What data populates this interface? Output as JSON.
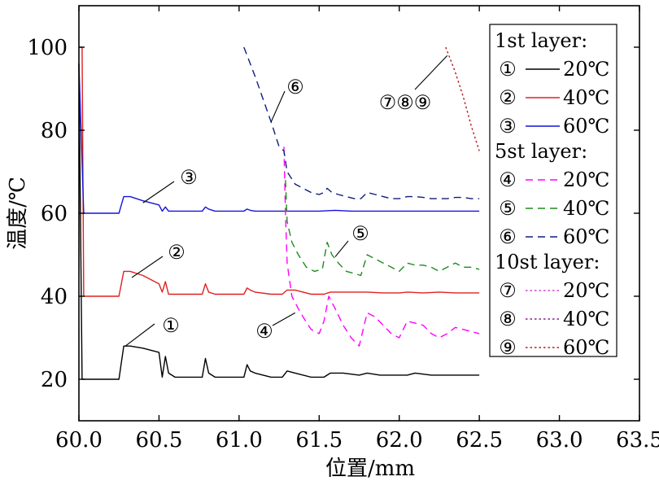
{
  "chart_data": {
    "type": "line",
    "xlabel": "位置/mm",
    "ylabel": "温度/℃",
    "xlim": [
      60.0,
      63.5
    ],
    "ylim": [
      10,
      110
    ],
    "xticks": [
      60.0,
      60.5,
      61.0,
      61.5,
      62.0,
      62.5,
      63.0,
      63.5
    ],
    "xtick_labels": [
      "60.0",
      "60.5",
      "61.0",
      "61.5",
      "62.0",
      "62.5",
      "63.0",
      "63.5"
    ],
    "yticks": [
      20,
      40,
      60,
      80,
      100
    ],
    "ytick_labels": [
      "20",
      "40",
      "60",
      "80",
      "100"
    ],
    "grid": false,
    "legend": {
      "placement": "top-right",
      "groups": [
        {
          "title": "1st layer:",
          "entries": [
            {
              "symbol": "①",
              "label": "20℃",
              "series": 0
            },
            {
              "symbol": "②",
              "label": "40℃",
              "series": 1
            },
            {
              "symbol": "③",
              "label": "60℃",
              "series": 2
            }
          ]
        },
        {
          "title": "5st layer:",
          "entries": [
            {
              "symbol": "④",
              "label": "20℃",
              "series": 3
            },
            {
              "symbol": "⑤",
              "label": "40℃",
              "series": 4
            },
            {
              "symbol": "⑥",
              "label": "60℃",
              "series": 5
            }
          ]
        },
        {
          "title": "10st layer:",
          "entries": [
            {
              "symbol": "⑦",
              "label": "20℃",
              "series": 6
            },
            {
              "symbol": "⑧",
              "label": "40℃",
              "series": 7
            },
            {
              "symbol": "⑨",
              "label": "60℃",
              "series": 8
            }
          ]
        }
      ]
    },
    "annotations": [
      {
        "text": "①",
        "x": 60.29,
        "y": 28.0
      },
      {
        "text": "②",
        "x": 60.33,
        "y": 44.5
      },
      {
        "text": "③",
        "x": 60.4,
        "y": 62.5
      },
      {
        "text": "④",
        "x": 61.35,
        "y": 36.0
      },
      {
        "text": "⑤",
        "x": 61.6,
        "y": 49.5
      },
      {
        "text": "⑥",
        "x": 61.2,
        "y": 82.0
      },
      {
        "text": "⑦⑧⑨",
        "x": 62.3,
        "y": 98.0
      }
    ],
    "series": [
      {
        "layer": "1st layer",
        "temp": "20℃",
        "color": "#000000",
        "dash": "solid",
        "x": [
          60.0,
          60.02,
          60.03,
          60.04,
          60.05,
          60.07,
          60.1,
          60.15,
          60.2,
          60.25,
          60.28,
          60.32,
          60.4,
          60.5,
          60.52,
          60.54,
          60.56,
          60.6,
          60.7,
          60.77,
          60.79,
          60.81,
          60.85,
          60.95,
          61.03,
          61.05,
          61.07,
          61.1,
          61.2,
          61.27,
          61.3,
          61.35,
          61.45,
          61.53,
          61.57,
          61.65,
          61.75,
          61.8,
          61.88,
          61.95,
          62.05,
          62.1,
          62.2,
          62.3,
          62.4,
          62.5
        ],
        "y": [
          96,
          20,
          20,
          20,
          20,
          20,
          20,
          20,
          20,
          20,
          28,
          28,
          27.5,
          26.5,
          20.5,
          25.5,
          21.5,
          20.5,
          20.5,
          20.5,
          25,
          21.5,
          20.5,
          20.5,
          20.5,
          23.5,
          22,
          21.5,
          20.5,
          20.5,
          22,
          21.5,
          20.5,
          20.5,
          21.5,
          21.5,
          21,
          21.5,
          21,
          21,
          21,
          21.5,
          21,
          21,
          21,
          21
        ]
      },
      {
        "layer": "1st layer",
        "temp": "40℃",
        "color": "#e02020",
        "dash": "solid",
        "x": [
          60.0,
          60.02,
          60.03,
          60.05,
          60.1,
          60.15,
          60.2,
          60.25,
          60.28,
          60.32,
          60.4,
          60.5,
          60.52,
          60.54,
          60.56,
          60.6,
          60.7,
          60.77,
          60.79,
          60.81,
          60.85,
          60.95,
          61.03,
          61.05,
          61.07,
          61.1,
          61.2,
          61.27,
          61.3,
          61.35,
          61.45,
          61.53,
          61.57,
          61.65,
          61.75,
          61.8,
          61.9,
          62.0,
          62.05,
          62.15,
          62.25,
          62.35,
          62.5
        ],
        "y": [
          100,
          100,
          40,
          40,
          40,
          40,
          40,
          40,
          46,
          46,
          45,
          43,
          41,
          43.5,
          40.5,
          40.5,
          40.5,
          40.5,
          43,
          41,
          40.5,
          40.5,
          40.5,
          42,
          41.5,
          41,
          40.5,
          40.5,
          41.5,
          41.5,
          40.5,
          40.5,
          41,
          41,
          41,
          41,
          40.8,
          40.8,
          41,
          40.8,
          41,
          40.8,
          40.8
        ]
      },
      {
        "layer": "1st layer",
        "temp": "60℃",
        "color": "#1414d8",
        "dash": "solid",
        "x": [
          60.0,
          60.03,
          60.05,
          60.1,
          60.15,
          60.2,
          60.25,
          60.28,
          60.32,
          60.4,
          60.5,
          60.52,
          60.54,
          60.56,
          60.6,
          60.7,
          60.77,
          60.79,
          60.81,
          60.85,
          60.95,
          61.03,
          61.05,
          61.07,
          61.1,
          61.2,
          61.3,
          61.4,
          61.5,
          61.6,
          61.7,
          61.8,
          61.9,
          62.0,
          62.1,
          62.2,
          62.3,
          62.4,
          62.5
        ],
        "y": [
          96,
          60,
          60,
          60,
          60,
          60,
          60,
          64,
          64,
          63,
          62,
          60.5,
          61.5,
          60.5,
          60.5,
          60.5,
          60.5,
          61.5,
          61,
          60.5,
          60.5,
          60.5,
          61,
          60.7,
          60.5,
          60.5,
          60.5,
          60.5,
          60.5,
          60.7,
          60.5,
          60.5,
          60.5,
          60.5,
          60.5,
          60.5,
          60.5,
          60.5,
          60.5
        ]
      },
      {
        "layer": "5st layer",
        "temp": "20℃",
        "color": "#ff00ff",
        "dash": "longdash",
        "x": [
          61.28,
          61.29,
          61.3,
          61.33,
          61.37,
          61.4,
          61.45,
          61.5,
          61.53,
          61.56,
          61.6,
          61.65,
          61.7,
          61.75,
          61.8,
          61.85,
          61.9,
          61.95,
          62.0,
          62.05,
          62.1,
          62.15,
          62.2,
          62.25,
          62.3,
          62.35,
          62.4,
          62.45,
          62.5
        ],
        "y": [
          76,
          60,
          48,
          40,
          37,
          35,
          32,
          31,
          34,
          40,
          37,
          33,
          30,
          28,
          36,
          35,
          33,
          31,
          30,
          34,
          33.5,
          33,
          31,
          30,
          31,
          32.5,
          32,
          31.5,
          31
        ]
      },
      {
        "layer": "5st layer",
        "temp": "40℃",
        "color": "#1e8c1e",
        "dash": "longdash",
        "x": [
          61.29,
          61.3,
          61.33,
          61.37,
          61.42,
          61.47,
          61.52,
          61.55,
          61.58,
          61.62,
          61.67,
          61.72,
          61.76,
          61.8,
          61.85,
          61.9,
          61.95,
          62.0,
          62.05,
          62.1,
          62.15,
          62.2,
          62.25,
          62.3,
          62.35,
          62.4,
          62.45,
          62.5
        ],
        "y": [
          68,
          58,
          53,
          50,
          47,
          46,
          46.5,
          53,
          50,
          48,
          46,
          45.5,
          45,
          50,
          49,
          48,
          47,
          46,
          48,
          47.5,
          47.5,
          47,
          46,
          47,
          48,
          47,
          47,
          46.5
        ]
      },
      {
        "layer": "5st layer",
        "temp": "60℃",
        "color": "#0d1f7a",
        "dash": "longdash",
        "x": [
          61.03,
          61.1,
          61.2,
          61.25,
          61.28,
          61.3,
          61.35,
          61.4,
          61.45,
          61.5,
          61.53,
          61.55,
          61.58,
          61.62,
          61.67,
          61.72,
          61.76,
          61.8,
          61.85,
          61.9,
          61.95,
          62.0,
          62.05,
          62.1,
          62.15,
          62.2,
          62.25,
          62.3,
          62.35,
          62.4,
          62.45,
          62.5
        ],
        "y": [
          100,
          93,
          82,
          76,
          75,
          70,
          67,
          66,
          65,
          64.5,
          65,
          66,
          65,
          64.5,
          64,
          63.5,
          63.5,
          65,
          64.5,
          64,
          63.5,
          63.5,
          64,
          64,
          63.8,
          63.5,
          63.5,
          63.5,
          63.8,
          63.8,
          63.5,
          63.5
        ]
      },
      {
        "layer": "10st layer",
        "temp": "20℃",
        "color": "#d040d0",
        "dash": "dotted",
        "x": [],
        "y": []
      },
      {
        "layer": "10st layer",
        "temp": "40℃",
        "color": "#8c1e8c",
        "dash": "dotted",
        "x": [],
        "y": []
      },
      {
        "layer": "10st layer",
        "temp": "60℃",
        "color": "#b41e1e",
        "dash": "dotted",
        "x": [
          62.29,
          62.35,
          62.4,
          62.45,
          62.5
        ],
        "y": [
          100,
          94,
          88,
          81,
          75
        ]
      }
    ]
  }
}
